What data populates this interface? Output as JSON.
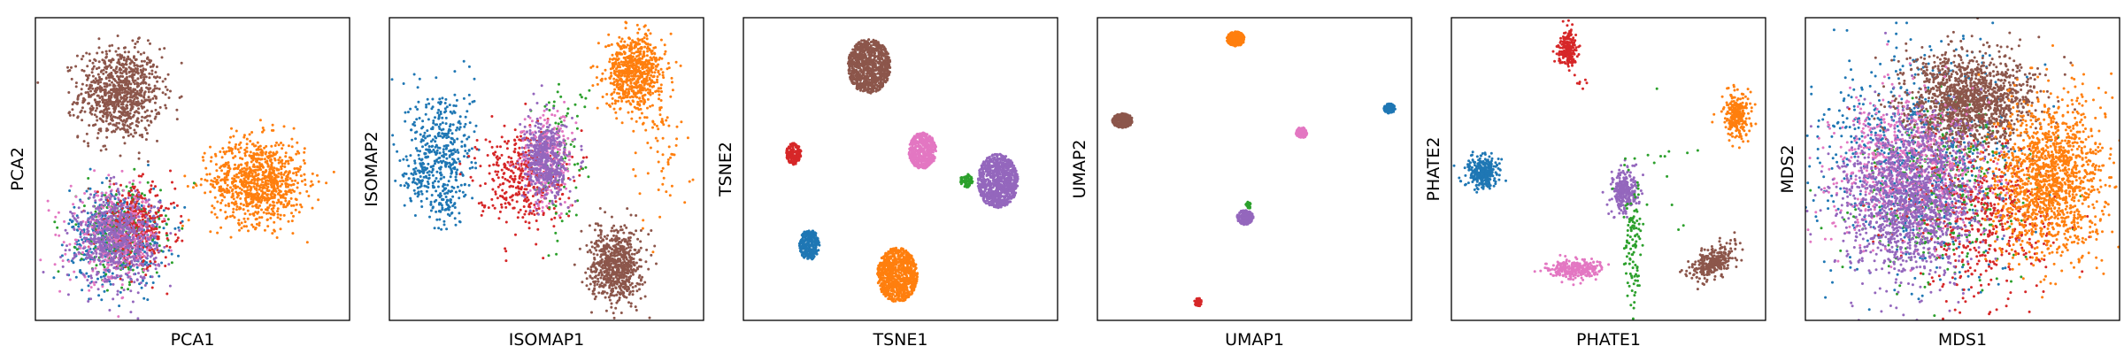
{
  "colors": {
    "blue": "#1f77b4",
    "orange": "#ff7f0e",
    "green": "#2ca02c",
    "red": "#d62728",
    "purple": "#9467bd",
    "brown": "#8c564b",
    "pink": "#e377c2"
  },
  "chart_data": [
    {
      "type": "scatter",
      "xlabel": "PCA1",
      "ylabel": "PCA2",
      "xlim": [
        0,
        1
      ],
      "ylim": [
        0,
        1
      ],
      "ticks": "none",
      "grid": false,
      "clusters": [
        {
          "color": "brown",
          "cx": 0.27,
          "cy": 0.75,
          "sx": 0.065,
          "sy": 0.075,
          "n": 900
        },
        {
          "color": "orange",
          "cx": 0.71,
          "cy": 0.46,
          "sx": 0.075,
          "sy": 0.07,
          "n": 900
        },
        {
          "color": "blue",
          "cx": 0.26,
          "cy": 0.28,
          "sx": 0.075,
          "sy": 0.08,
          "n": 500
        },
        {
          "color": "green",
          "cx": 0.27,
          "cy": 0.29,
          "sx": 0.065,
          "sy": 0.075,
          "n": 250
        },
        {
          "color": "red",
          "cx": 0.32,
          "cy": 0.31,
          "sx": 0.06,
          "sy": 0.065,
          "n": 350
        },
        {
          "color": "pink",
          "cx": 0.25,
          "cy": 0.27,
          "sx": 0.07,
          "sy": 0.075,
          "n": 350
        },
        {
          "color": "purple",
          "cx": 0.26,
          "cy": 0.27,
          "sx": 0.065,
          "sy": 0.075,
          "n": 600
        }
      ]
    },
    {
      "type": "scatter",
      "xlabel": "ISOMAP1",
      "ylabel": "ISOMAP2",
      "xlim": [
        0,
        1
      ],
      "ylim": [
        0,
        1
      ],
      "ticks": "none",
      "grid": false,
      "clusters": [
        {
          "color": "orange",
          "cx": 0.78,
          "cy": 0.82,
          "sx": 0.045,
          "sy": 0.06,
          "n": 700
        },
        {
          "color": "orange",
          "cx": 0.86,
          "cy": 0.55,
          "sx": 0.05,
          "sy": 0.12,
          "n": 60
        },
        {
          "color": "blue",
          "cx": 0.17,
          "cy": 0.58,
          "sx": 0.05,
          "sy": 0.1,
          "n": 350
        },
        {
          "color": "blue",
          "cx": 0.09,
          "cy": 0.47,
          "sx": 0.025,
          "sy": 0.04,
          "n": 80
        },
        {
          "color": "blue",
          "cx": 0.18,
          "cy": 0.4,
          "sx": 0.025,
          "sy": 0.05,
          "n": 90
        },
        {
          "color": "red",
          "cx": 0.42,
          "cy": 0.48,
          "sx": 0.07,
          "sy": 0.08,
          "n": 400
        },
        {
          "color": "green",
          "cx": 0.55,
          "cy": 0.55,
          "sx": 0.04,
          "sy": 0.12,
          "n": 90
        },
        {
          "color": "pink",
          "cx": 0.5,
          "cy": 0.53,
          "sx": 0.04,
          "sy": 0.08,
          "n": 250
        },
        {
          "color": "purple",
          "cx": 0.5,
          "cy": 0.53,
          "sx": 0.035,
          "sy": 0.065,
          "n": 500
        },
        {
          "color": "brown",
          "cx": 0.72,
          "cy": 0.18,
          "sx": 0.04,
          "sy": 0.06,
          "n": 700
        }
      ]
    },
    {
      "type": "scatter",
      "xlabel": "TSNE1",
      "ylabel": "TSNE2",
      "xlim": [
        0,
        1
      ],
      "ylim": [
        0,
        1
      ],
      "ticks": "none",
      "grid": false,
      "clusters": [
        {
          "color": "brown",
          "cx": 0.4,
          "cy": 0.84,
          "sx": 0.034,
          "sy": 0.045,
          "n": 900,
          "uniform": true
        },
        {
          "color": "red",
          "cx": 0.16,
          "cy": 0.55,
          "sx": 0.012,
          "sy": 0.018,
          "n": 160,
          "uniform": true
        },
        {
          "color": "pink",
          "cx": 0.57,
          "cy": 0.56,
          "sx": 0.022,
          "sy": 0.03,
          "n": 500,
          "uniform": true
        },
        {
          "color": "purple",
          "cx": 0.81,
          "cy": 0.46,
          "sx": 0.032,
          "sy": 0.045,
          "n": 900,
          "uniform": true
        },
        {
          "color": "green",
          "cx": 0.71,
          "cy": 0.46,
          "sx": 0.01,
          "sy": 0.012,
          "n": 60,
          "uniform": true
        },
        {
          "color": "blue",
          "cx": 0.21,
          "cy": 0.25,
          "sx": 0.016,
          "sy": 0.025,
          "n": 300,
          "uniform": true
        },
        {
          "color": "orange",
          "cx": 0.49,
          "cy": 0.15,
          "sx": 0.032,
          "sy": 0.045,
          "n": 900,
          "uniform": true
        }
      ]
    },
    {
      "type": "scatter",
      "xlabel": "UMAP1",
      "ylabel": "UMAP2",
      "xlim": [
        0,
        1
      ],
      "ylim": [
        0,
        1
      ],
      "ticks": "none",
      "grid": false,
      "clusters": [
        {
          "color": "orange",
          "cx": 0.44,
          "cy": 0.93,
          "sx": 0.014,
          "sy": 0.012,
          "n": 300,
          "uniform": true
        },
        {
          "color": "brown",
          "cx": 0.08,
          "cy": 0.66,
          "sx": 0.016,
          "sy": 0.012,
          "n": 300,
          "uniform": true
        },
        {
          "color": "blue",
          "cx": 0.93,
          "cy": 0.7,
          "sx": 0.009,
          "sy": 0.008,
          "n": 120,
          "uniform": true
        },
        {
          "color": "pink",
          "cx": 0.65,
          "cy": 0.62,
          "sx": 0.009,
          "sy": 0.009,
          "n": 120,
          "uniform": true
        },
        {
          "color": "purple",
          "cx": 0.47,
          "cy": 0.34,
          "sx": 0.013,
          "sy": 0.012,
          "n": 200,
          "uniform": true
        },
        {
          "color": "green",
          "cx": 0.48,
          "cy": 0.38,
          "sx": 0.004,
          "sy": 0.006,
          "n": 25,
          "uniform": true
        },
        {
          "color": "red",
          "cx": 0.32,
          "cy": 0.06,
          "sx": 0.006,
          "sy": 0.007,
          "n": 50,
          "uniform": true
        }
      ]
    },
    {
      "type": "scatter",
      "xlabel": "PHATE1",
      "ylabel": "PHATE2",
      "xlim": [
        0,
        1
      ],
      "ylim": [
        0,
        1
      ],
      "ticks": "none",
      "grid": false,
      "clusters": [
        {
          "color": "red",
          "cx": 0.37,
          "cy": 0.9,
          "sx": 0.015,
          "sy": 0.03,
          "n": 200
        },
        {
          "color": "red",
          "cx": 0.42,
          "cy": 0.78,
          "sx": 0.01,
          "sy": 0.01,
          "n": 6
        },
        {
          "color": "orange",
          "cx": 0.91,
          "cy": 0.68,
          "sx": 0.02,
          "sy": 0.035,
          "n": 260
        },
        {
          "color": "blue",
          "cx": 0.1,
          "cy": 0.49,
          "sx": 0.025,
          "sy": 0.025,
          "n": 320
        },
        {
          "color": "purple",
          "cx": 0.55,
          "cy": 0.43,
          "sx": 0.02,
          "sy": 0.035,
          "n": 260
        },
        {
          "color": "green",
          "cx": 0.58,
          "cy": 0.23,
          "sx": 0.015,
          "sy": 0.12,
          "n": 110
        },
        {
          "color": "green",
          "cx": 0.69,
          "cy": 0.5,
          "sx": 0.08,
          "sy": 0.15,
          "n": 14
        },
        {
          "color": "pink",
          "cx": 0.39,
          "cy": 0.17,
          "sx": 0.04,
          "sy": 0.015,
          "n": 300
        },
        {
          "color": "brown",
          "cx": 0.83,
          "cy": 0.19,
          "sx": 0.035,
          "sy": 0.025,
          "n": 300,
          "tilt": 0.5
        }
      ]
    },
    {
      "type": "scatter",
      "xlabel": "MDS1",
      "ylabel": "MDS2",
      "xlim": [
        0,
        1
      ],
      "ylim": [
        0,
        1
      ],
      "ticks": "none",
      "grid": false,
      "clusters": [
        {
          "color": "blue",
          "cx": 0.35,
          "cy": 0.55,
          "sx": 0.16,
          "sy": 0.18,
          "n": 700
        },
        {
          "color": "green",
          "cx": 0.42,
          "cy": 0.4,
          "sx": 0.14,
          "sy": 0.15,
          "n": 400
        },
        {
          "color": "red",
          "cx": 0.55,
          "cy": 0.35,
          "sx": 0.12,
          "sy": 0.13,
          "n": 500
        },
        {
          "color": "brown",
          "cx": 0.52,
          "cy": 0.73,
          "sx": 0.1,
          "sy": 0.08,
          "n": 1400
        },
        {
          "color": "orange",
          "cx": 0.78,
          "cy": 0.47,
          "sx": 0.085,
          "sy": 0.13,
          "n": 1400
        },
        {
          "color": "pink",
          "cx": 0.32,
          "cy": 0.5,
          "sx": 0.12,
          "sy": 0.12,
          "n": 700
        },
        {
          "color": "purple",
          "cx": 0.33,
          "cy": 0.4,
          "sx": 0.11,
          "sy": 0.13,
          "n": 1400
        }
      ]
    }
  ]
}
